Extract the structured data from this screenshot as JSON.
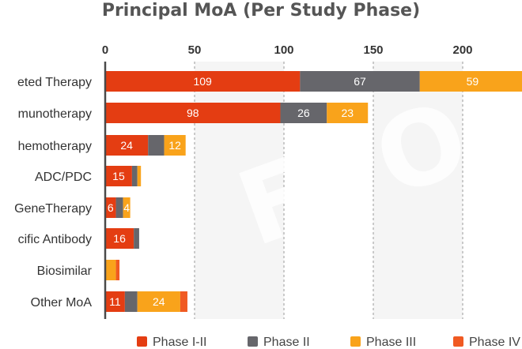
{
  "chart_data": {
    "type": "bar",
    "orientation": "horizontal",
    "stacked": true,
    "title": "Principal MoA (Per Study Phase)",
    "xlabel": "",
    "ylabel": "",
    "xlim": [
      0,
      235
    ],
    "xticks": [
      0,
      50,
      100,
      150,
      200
    ],
    "grid": true,
    "legend_position": "bottom",
    "categories": [
      "Targeted Therapy",
      "Immunotherapy",
      "Chemotherapy",
      "ADC/PDC",
      "GeneTherapy",
      "Specific Antibody",
      "Biosimilar",
      "Other MoA"
    ],
    "category_labels_visible": [
      "eted Therapy",
      "munotherapy",
      "hemotherapy",
      "ADC/PDC",
      "GeneTherapy",
      "cific Antibody",
      "Biosimilar",
      "Other MoA"
    ],
    "series": [
      {
        "name": "Phase I-II",
        "color": "#e43d12",
        "values": [
          109,
          98,
          24,
          15,
          6,
          16,
          0,
          11
        ]
      },
      {
        "name": "Phase II",
        "color": "#66666b",
        "values": [
          67,
          26,
          9,
          3,
          4,
          3,
          0,
          7
        ]
      },
      {
        "name": "Phase III",
        "color": "#f9a31b",
        "values": [
          59,
          23,
          12,
          2,
          4,
          0,
          6,
          24
        ]
      },
      {
        "name": "Phase IV",
        "color": "#f05a22",
        "values": [
          0,
          0,
          0,
          0,
          0,
          0,
          2,
          4
        ]
      }
    ],
    "data_labels": [
      [
        "109",
        "67",
        "59",
        ""
      ],
      [
        "98",
        "26",
        "23",
        ""
      ],
      [
        "24",
        "",
        "12",
        ""
      ],
      [
        "15",
        "",
        "",
        ""
      ],
      [
        "6",
        "",
        "4",
        ""
      ],
      [
        "16",
        "",
        "",
        ""
      ],
      [
        "",
        "",
        "",
        ""
      ],
      [
        "11",
        "",
        "24",
        ""
      ]
    ],
    "legend_labels": [
      "Phase I-II",
      "Phase II",
      "Phase III",
      "Phase IV"
    ],
    "watermark": "FPO"
  }
}
